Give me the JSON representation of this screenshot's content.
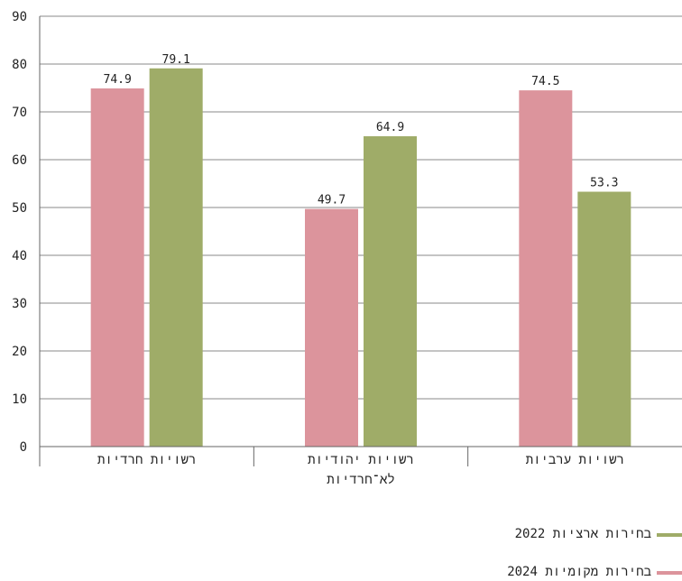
{
  "chart_data": {
    "type": "bar",
    "categories": [
      "רשויות חרדיות",
      "רשויות יהודיות לא־חרדיות",
      "רשויות ערביות"
    ],
    "category_lines": [
      [
        "רשויות חרדיות"
      ],
      [
        "רשויות יהודיות",
        "לא־חרדיות"
      ],
      [
        "רשויות ערביות"
      ]
    ],
    "series": [
      {
        "name": "בחירות מקומיות 2024",
        "values": [
          74.9,
          49.7,
          74.5
        ],
        "color": "#dc949c"
      },
      {
        "name": "בחירות ארציות 2022",
        "values": [
          79.1,
          64.9,
          53.3
        ],
        "color": "#9fac68"
      }
    ],
    "ylim": [
      0,
      90
    ],
    "yticks": [
      0,
      10,
      20,
      30,
      40,
      50,
      60,
      70,
      80,
      90
    ],
    "grid": true,
    "legend_position": "bottom-right",
    "legend_order": [
      1,
      0
    ],
    "title": "",
    "xlabel": "",
    "ylabel": ""
  }
}
